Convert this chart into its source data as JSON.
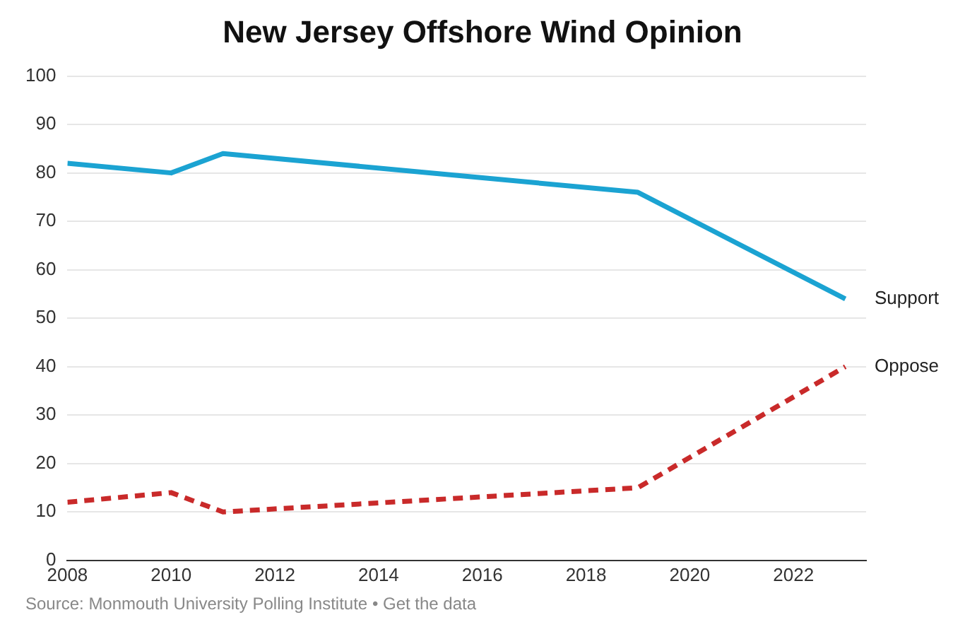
{
  "chart_data": {
    "type": "line",
    "title": "New Jersey Offshore Wind Opinion",
    "x": [
      2008,
      2010,
      2011,
      2019,
      2023
    ],
    "series": [
      {
        "name": "Support",
        "color": "#1ba3d2",
        "values": [
          82,
          80,
          84,
          76,
          54
        ],
        "line_style": "solid"
      },
      {
        "name": "Oppose",
        "color": "#c92a2a",
        "values": [
          12,
          14,
          10,
          15,
          40
        ],
        "line_style": "dashed"
      }
    ],
    "xlim": [
      2008,
      2023.4
    ],
    "xticks": [
      2008,
      2010,
      2012,
      2014,
      2016,
      2018,
      2020,
      2022
    ],
    "ylim": [
      0,
      100
    ],
    "yticks": [
      0,
      10,
      20,
      30,
      40,
      50,
      60,
      70,
      80,
      90,
      100
    ],
    "grid": "y",
    "legend": false,
    "marker": "none",
    "annotations": [
      "Source: Monmouth University Polling Institute • Get the data"
    ]
  }
}
